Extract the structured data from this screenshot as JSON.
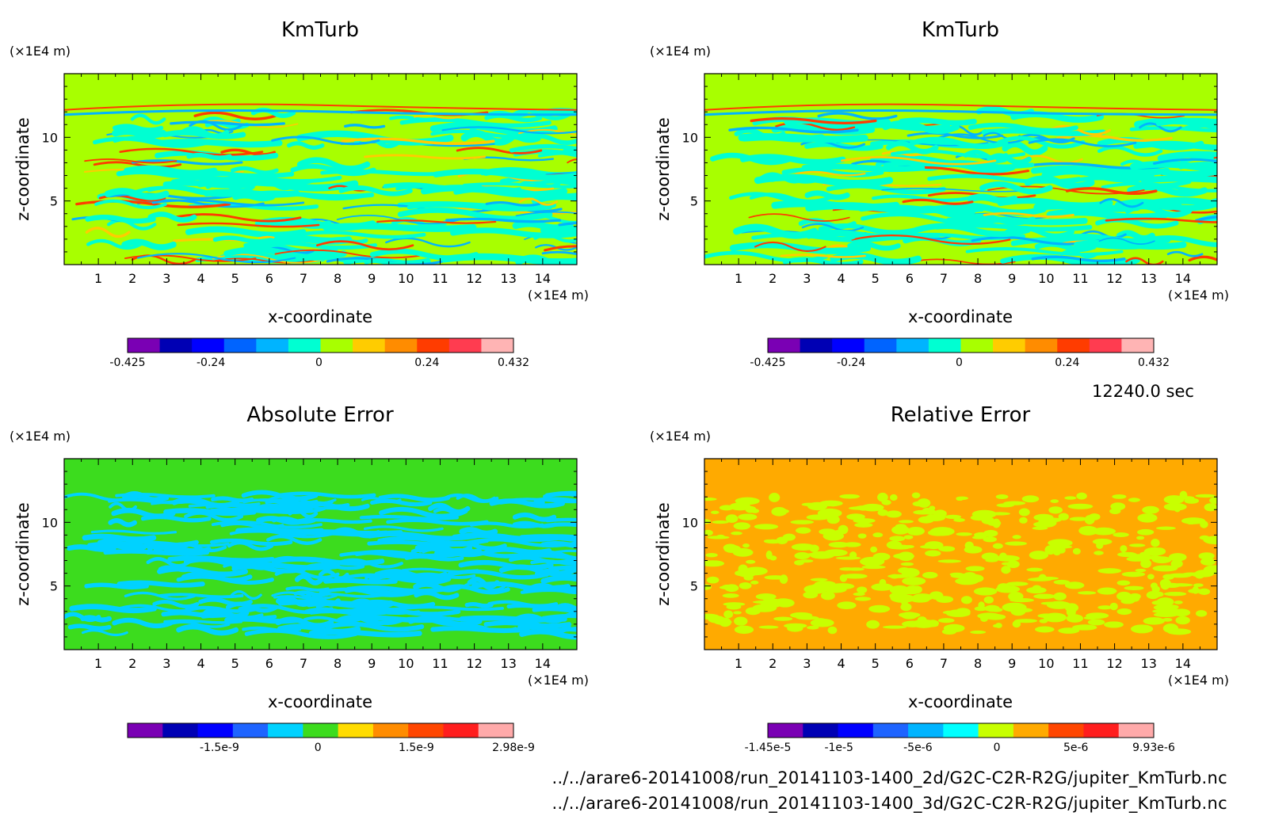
{
  "time_label": "12240.0 sec",
  "files": [
    "../../arare6-20141008/run_20141103-1400_2d/G2C-C2R-R2G/jupiter_KmTurb.nc",
    "../../arare6-20141008/run_20141103-1400_3d/G2C-C2R-R2G/jupiter_KmTurb.nc"
  ],
  "chart_data": [
    {
      "type": "heatmap",
      "title": "KmTurb",
      "xlabel": "x-coordinate",
      "ylabel": "z-coordinate",
      "x_unit": "(×1E4 m)",
      "y_unit": "(×1E4 m)",
      "x_ticks": [
        1,
        2,
        3,
        4,
        5,
        6,
        7,
        8,
        9,
        10,
        11,
        12,
        13,
        14
      ],
      "y_ticks": [
        5,
        10
      ],
      "xlim": [
        0,
        15
      ],
      "ylim": [
        0,
        15
      ],
      "pattern": "turbulent",
      "background_color": "#a8ff00",
      "colorbar": {
        "min": -0.425,
        "max": 0.432,
        "tick_labels": [
          "-0.425",
          "-0.24",
          "0",
          "0.24",
          "0.432"
        ],
        "tick_values": [
          -0.425,
          -0.24,
          0,
          0.24,
          0.432
        ],
        "colors": [
          "#7a00b4",
          "#0000b4",
          "#0000ff",
          "#0064ff",
          "#00b4ff",
          "#00ffd2",
          "#a8ff00",
          "#ffcc00",
          "#ff8c00",
          "#ff3c00",
          "#ff3c50",
          "#ffb4b4"
        ]
      }
    },
    {
      "type": "heatmap",
      "title": "KmTurb",
      "xlabel": "x-coordinate",
      "ylabel": "z-coordinate",
      "x_unit": "(×1E4 m)",
      "y_unit": "(×1E4 m)",
      "x_ticks": [
        1,
        2,
        3,
        4,
        5,
        6,
        7,
        8,
        9,
        10,
        11,
        12,
        13,
        14
      ],
      "y_ticks": [
        5,
        10
      ],
      "xlim": [
        0,
        15
      ],
      "ylim": [
        0,
        15
      ],
      "pattern": "turbulent",
      "background_color": "#a8ff00",
      "colorbar": {
        "min": -0.425,
        "max": 0.432,
        "tick_labels": [
          "-0.425",
          "-0.24",
          "0",
          "0.24",
          "0.432"
        ],
        "tick_values": [
          -0.425,
          -0.24,
          0,
          0.24,
          0.432
        ],
        "colors": [
          "#7a00b4",
          "#0000b4",
          "#0000ff",
          "#0064ff",
          "#00b4ff",
          "#00ffd2",
          "#a8ff00",
          "#ffcc00",
          "#ff8c00",
          "#ff3c00",
          "#ff3c50",
          "#ffb4b4"
        ]
      }
    },
    {
      "type": "heatmap",
      "title": "Absolute Error",
      "xlabel": "x-coordinate",
      "ylabel": "z-coordinate",
      "x_unit": "(×1E4 m)",
      "y_unit": "(×1E4 m)",
      "x_ticks": [
        1,
        2,
        3,
        4,
        5,
        6,
        7,
        8,
        9,
        10,
        11,
        12,
        13,
        14
      ],
      "y_ticks": [
        5,
        10
      ],
      "xlim": [
        0,
        15
      ],
      "ylim": [
        0,
        15
      ],
      "pattern": "abs_error",
      "background_color": "#3cdc1e",
      "colorbar": {
        "min": -2.9e-09,
        "max": 2.98e-09,
        "tick_labels": [
          "-1.5e-9",
          "0",
          "1.5e-9",
          "2.98e-9"
        ],
        "tick_values": [
          -1.5e-09,
          0,
          1.5e-09,
          2.98e-09
        ],
        "colors": [
          "#7a00b4",
          "#0000b4",
          "#0000ff",
          "#1e64ff",
          "#00d2ff",
          "#3cdc1e",
          "#ffdc00",
          "#ff8c00",
          "#ff4600",
          "#ff1e1e",
          "#ffaaaa"
        ]
      }
    },
    {
      "type": "heatmap",
      "title": "Relative Error",
      "xlabel": "x-coordinate",
      "ylabel": "z-coordinate",
      "x_unit": "(×1E4 m)",
      "y_unit": "(×1E4 m)",
      "x_ticks": [
        1,
        2,
        3,
        4,
        5,
        6,
        7,
        8,
        9,
        10,
        11,
        12,
        13,
        14
      ],
      "y_ticks": [
        5,
        10
      ],
      "xlim": [
        0,
        15
      ],
      "ylim": [
        0,
        15
      ],
      "pattern": "rel_error",
      "background_color": "#ffaa00",
      "colorbar": {
        "min": -1.45e-05,
        "max": 9.93e-06,
        "tick_labels": [
          "-1.45e-5",
          "-1e-5",
          "-5e-6",
          "0",
          "5e-6",
          "9.93e-6"
        ],
        "tick_values": [
          -1.45e-05,
          -1e-05,
          -5e-06,
          0,
          5e-06,
          9.93e-06
        ],
        "colors": [
          "#7a00b4",
          "#0000b4",
          "#0000ff",
          "#1e64ff",
          "#00b4ff",
          "#00ffff",
          "#c8ff00",
          "#ffaa00",
          "#ff4600",
          "#ff1e1e",
          "#ffaaaa"
        ]
      }
    }
  ]
}
